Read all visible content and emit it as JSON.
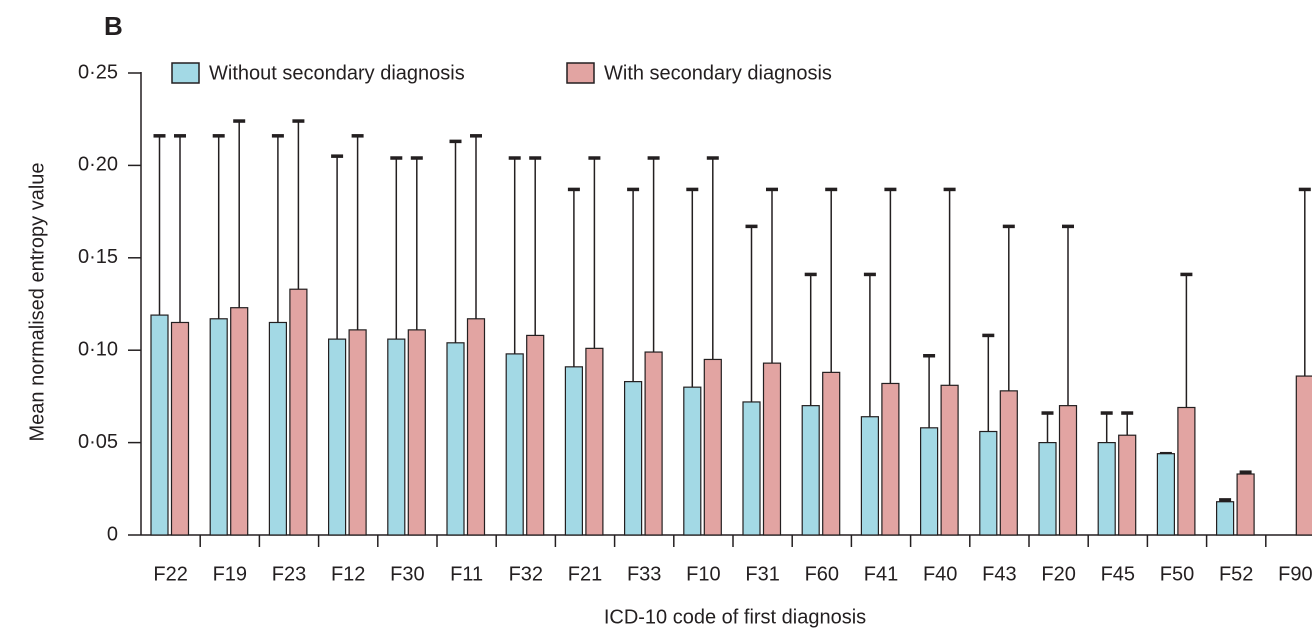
{
  "chart_data": {
    "type": "bar",
    "panel_label": "B",
    "xlabel": "ICD-10 code of first diagnosis",
    "ylabel": "Mean normalised entropy value",
    "categories": [
      "F22",
      "F19",
      "F23",
      "F12",
      "F30",
      "F11",
      "F32",
      "F21",
      "F33",
      "F10",
      "F31",
      "F60",
      "F41",
      "F40",
      "F43",
      "F20",
      "F45",
      "F50",
      "F52",
      "F90"
    ],
    "series": [
      {
        "name": "Without secondary diagnosis",
        "color": "#a3d9e5",
        "values": [
          0.119,
          0.117,
          0.115,
          0.106,
          0.106,
          0.104,
          0.098,
          0.091,
          0.083,
          0.08,
          0.072,
          0.07,
          0.064,
          0.058,
          0.056,
          0.05,
          0.05,
          0.044,
          0.018,
          null
        ],
        "errors": [
          0.097,
          0.099,
          0.101,
          0.099,
          0.098,
          0.109,
          0.106,
          0.096,
          0.104,
          0.107,
          0.095,
          0.071,
          0.077,
          0.039,
          0.052,
          0.016,
          0.016,
          0.0,
          0.001,
          null
        ]
      },
      {
        "name": "With secondary diagnosis",
        "color": "#e2a4a2",
        "values": [
          0.115,
          0.123,
          0.133,
          0.111,
          0.111,
          0.117,
          0.108,
          0.101,
          0.099,
          0.095,
          0.093,
          0.088,
          0.082,
          0.081,
          0.078,
          0.07,
          0.054,
          0.069,
          0.033,
          0.086
        ],
        "errors": [
          0.101,
          0.101,
          0.091,
          0.105,
          0.093,
          0.099,
          0.096,
          0.103,
          0.105,
          0.109,
          0.094,
          0.099,
          0.105,
          0.106,
          0.089,
          0.097,
          0.012,
          0.072,
          0.001,
          0.101
        ]
      }
    ],
    "ylim": [
      0,
      0.25
    ],
    "yticks": [
      0,
      {
        "value": 0.05,
        "label": "0·05"
      },
      {
        "value": 0.1,
        "label": "0·10"
      },
      {
        "value": 0.15,
        "label": "0·15"
      },
      {
        "value": 0.2,
        "label": "0·20"
      },
      {
        "value": 0.25,
        "label": "0·25"
      }
    ],
    "grid": false,
    "legend": "top-left"
  }
}
